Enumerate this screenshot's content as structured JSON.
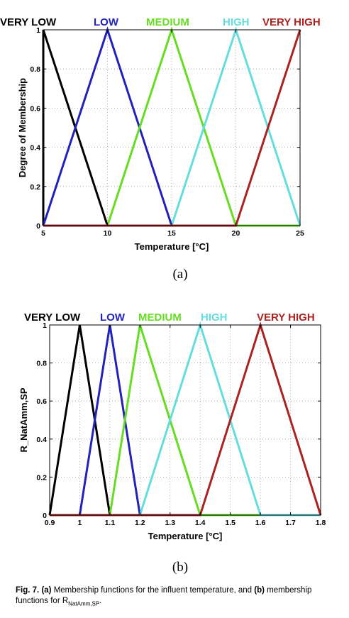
{
  "chart_data": [
    {
      "type": "line",
      "xlabel": "Temperature [°C]",
      "ylabel": "Degree of Membership",
      "xlim": [
        5,
        25
      ],
      "ylim": [
        0,
        1
      ],
      "xticks": [
        "5",
        "10",
        "15",
        "20",
        "25"
      ],
      "yticks": [
        "0",
        "0.2",
        "0.4",
        "0.6",
        "0.8",
        "1"
      ],
      "grid": true,
      "series": [
        {
          "name": "VERY LOW",
          "color": "#000000",
          "x": [
            5,
            5,
            10,
            25
          ],
          "y": [
            0,
            1,
            0,
            0
          ]
        },
        {
          "name": "LOW",
          "color": "#2222bb",
          "x": [
            5,
            10,
            15,
            25
          ],
          "y": [
            0,
            1,
            0,
            0
          ]
        },
        {
          "name": "MEDIUM",
          "color": "#66dd22",
          "x": [
            5,
            10,
            15,
            20,
            25
          ],
          "y": [
            0,
            0,
            1,
            0,
            0
          ]
        },
        {
          "name": "HIGH",
          "color": "#66dddd",
          "x": [
            5,
            15,
            20,
            25,
            25
          ],
          "y": [
            0,
            0,
            1,
            0,
            0
          ]
        },
        {
          "name": "VERY HIGH",
          "color": "#aa2222",
          "x": [
            5,
            20,
            25
          ],
          "y": [
            0,
            0,
            1
          ]
        }
      ]
    },
    {
      "type": "line",
      "xlabel": "Temperature [°C]",
      "ylabel": "R_NatAmm,SP",
      "xlim": [
        0.9,
        1.8
      ],
      "ylim": [
        0,
        1
      ],
      "xticks": [
        "0.9",
        "1",
        "1.1",
        "1.2",
        "1.3",
        "1.4",
        "1.5",
        "1.6",
        "1.7",
        "1.8"
      ],
      "yticks": [
        "0",
        "0.2",
        "0.4",
        "0.6",
        "0.8",
        "1"
      ],
      "grid": true,
      "series": [
        {
          "name": "VERY LOW",
          "color": "#000000",
          "x": [
            0.9,
            0.9,
            1.0,
            1.1,
            1.8
          ],
          "y": [
            0,
            0,
            1,
            0,
            0
          ]
        },
        {
          "name": "LOW",
          "color": "#2222bb",
          "x": [
            0.9,
            1.0,
            1.1,
            1.2,
            1.8
          ],
          "y": [
            0,
            0,
            1,
            0,
            0
          ]
        },
        {
          "name": "MEDIUM",
          "color": "#66dd22",
          "x": [
            0.9,
            1.1,
            1.2,
            1.4,
            1.8
          ],
          "y": [
            0,
            0,
            1,
            0,
            0
          ]
        },
        {
          "name": "HIGH",
          "color": "#66dddd",
          "x": [
            0.9,
            1.2,
            1.4,
            1.6,
            1.8
          ],
          "y": [
            0,
            0,
            1,
            0,
            0
          ]
        },
        {
          "name": "VERY HIGH",
          "color": "#aa2222",
          "x": [
            0.9,
            1.4,
            1.6,
            1.8
          ],
          "y": [
            0,
            0,
            1,
            0
          ]
        }
      ]
    }
  ],
  "subcaptions": [
    "(a)",
    "(b)"
  ],
  "caption": {
    "label": "Fig. 7.",
    "a_tag": "(a)",
    "a_text": " Membership functions for the influent temperature, and ",
    "b_tag": "(b)",
    "b_text": " membership functions for R",
    "sub": "NatAmm,SP",
    "end": "."
  }
}
